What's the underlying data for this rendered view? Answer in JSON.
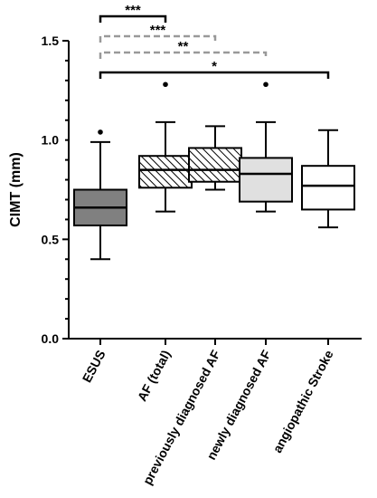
{
  "chart_data": {
    "type": "boxplot",
    "ylabel": "CIMT (mm)",
    "ylim": [
      0.0,
      1.5
    ],
    "yticks": [
      {
        "value": 0.0,
        "label": "0.0"
      },
      {
        "value": 0.5,
        "label": "0.5"
      },
      {
        "value": 1.0,
        "label": "1.0"
      },
      {
        "value": 1.5,
        "label": "1.5"
      }
    ],
    "categories": [
      {
        "label": "ESUS",
        "whisker_low": 0.4,
        "q1": 0.57,
        "median": 0.66,
        "q3": 0.75,
        "whisker_high": 0.99,
        "outliers": [
          1.04
        ],
        "fill": "#808080",
        "pattern": "none"
      },
      {
        "label": "AF (total)",
        "whisker_low": 0.64,
        "q1": 0.76,
        "median": 0.85,
        "q3": 0.92,
        "whisker_high": 1.09,
        "outliers": [
          1.28
        ],
        "fill": "#ffffff",
        "pattern": "hatch"
      },
      {
        "label": "previously diagnosed AF",
        "whisker_low": 0.75,
        "q1": 0.79,
        "median": 0.85,
        "q3": 0.96,
        "whisker_high": 1.07,
        "outliers": [],
        "fill": "#ffffff",
        "pattern": "hatch"
      },
      {
        "label": "newly diagnosed AF",
        "whisker_low": 0.64,
        "q1": 0.69,
        "median": 0.83,
        "q3": 0.91,
        "whisker_high": 1.09,
        "outliers": [
          1.28
        ],
        "fill": "#e0e0e0",
        "pattern": "none"
      },
      {
        "label": "angiopathic Stroke",
        "whisker_low": 0.56,
        "q1": 0.65,
        "median": 0.77,
        "q3": 0.87,
        "whisker_high": 1.05,
        "outliers": [],
        "fill": "#ffffff",
        "pattern": "none"
      }
    ],
    "significance": [
      {
        "from": 0,
        "to": 1,
        "label": "***",
        "style": "solid"
      },
      {
        "from": 0,
        "to": 2,
        "label": "***",
        "style": "dashed"
      },
      {
        "from": 0,
        "to": 3,
        "label": "**",
        "style": "dashed"
      },
      {
        "from": 0,
        "to": 4,
        "label": "*",
        "style": "solid"
      }
    ],
    "grid": false,
    "legend": "none"
  }
}
